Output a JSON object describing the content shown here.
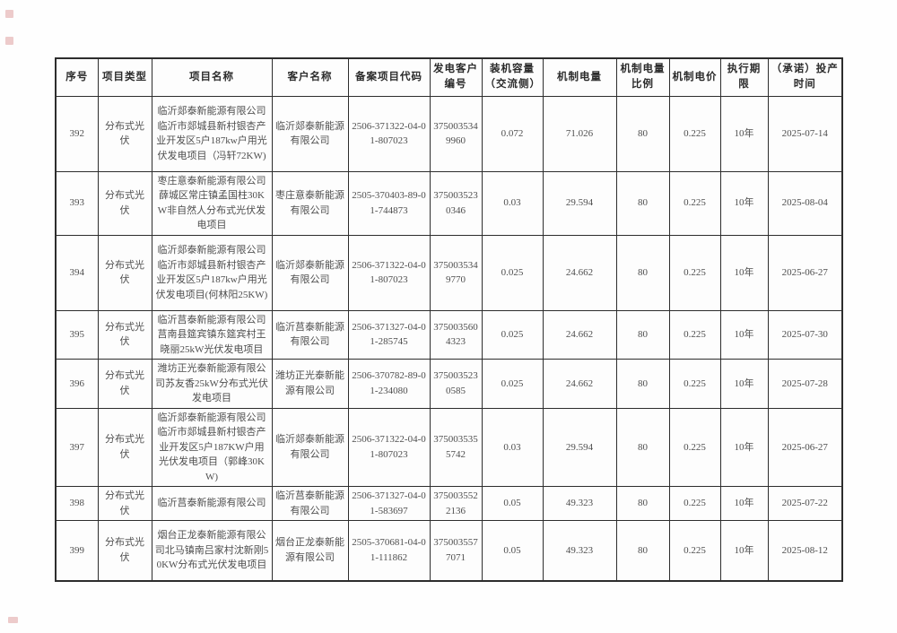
{
  "table": {
    "columns": [
      {
        "key": "index",
        "label": "序号"
      },
      {
        "key": "type",
        "label": "项目类型"
      },
      {
        "key": "name",
        "label": "项目名称"
      },
      {
        "key": "customer",
        "label": "客户名称"
      },
      {
        "key": "code",
        "label": "备案项目代码"
      },
      {
        "key": "gen_no",
        "label": "发电客户编号"
      },
      {
        "key": "capacity",
        "label": "装机容量（交流侧）"
      },
      {
        "key": "energy",
        "label": "机制电量"
      },
      {
        "key": "ratio",
        "label": "机制电量比例"
      },
      {
        "key": "price",
        "label": "机制电价"
      },
      {
        "key": "term",
        "label": "执行期限"
      },
      {
        "key": "date",
        "label": "（承诺）投产时间"
      }
    ],
    "rows": [
      {
        "index": "392",
        "type": "分布式光伏",
        "name": "临沂郯泰新能源有限公司临沂市郯城县新村银杏产业开发区5户187kw户用光伏发电项目（冯轩72KW)",
        "customer": "临沂郯泰新能源有限公司",
        "code": "2506-371322-04-01-807023",
        "gen_no": "3750035349960",
        "capacity": "0.072",
        "energy": "71.026",
        "ratio": "80",
        "price": "0.225",
        "term": "10年",
        "date": "2025-07-14"
      },
      {
        "index": "393",
        "type": "分布式光伏",
        "name": "枣庄意泰新能源有限公司薛城区常庄镇孟国柱30KW非自然人分布式光伏发电项目",
        "customer": "枣庄意泰新能源有限公司",
        "code": "2505-370403-89-01-744873",
        "gen_no": "3750035230346",
        "capacity": "0.03",
        "energy": "29.594",
        "ratio": "80",
        "price": "0.225",
        "term": "10年",
        "date": "2025-08-04"
      },
      {
        "index": "394",
        "type": "分布式光伏",
        "name": "临沂郯泰新能源有限公司临沂市郯城县新村银杏产业开发区5户187kw户用光伏发电项目(何林阳25KW)",
        "customer": "临沂郯泰新能源有限公司",
        "code": "2506-371322-04-01-807023",
        "gen_no": "3750035349770",
        "capacity": "0.025",
        "energy": "24.662",
        "ratio": "80",
        "price": "0.225",
        "term": "10年",
        "date": "2025-06-27"
      },
      {
        "index": "395",
        "type": "分布式光伏",
        "name": "临沂莒泰新能源有限公司莒南县筵宾镇东筵宾村王晓丽25kW光伏发电项目",
        "customer": "临沂莒泰新能源有限公司",
        "code": "2506-371327-04-01-285745",
        "gen_no": "3750035604323",
        "capacity": "0.025",
        "energy": "24.662",
        "ratio": "80",
        "price": "0.225",
        "term": "10年",
        "date": "2025-07-30"
      },
      {
        "index": "396",
        "type": "分布式光伏",
        "name": "潍坊正光泰新能源有限公司苏友香25kW分布式光伏发电项目",
        "customer": "潍坊正光泰新能源有限公司",
        "code": "2506-370782-89-01-234080",
        "gen_no": "3750035230585",
        "capacity": "0.025",
        "energy": "24.662",
        "ratio": "80",
        "price": "0.225",
        "term": "10年",
        "date": "2025-07-28"
      },
      {
        "index": "397",
        "type": "分布式光伏",
        "name": "临沂郯泰新能源有限公司临沂市郯城县新村银杏产业开发区5户187KW户用光伏发电项目（郭峰30KW)",
        "customer": "临沂郯泰新能源有限公司",
        "code": "2506-371322-04-01-807023",
        "gen_no": "3750035355742",
        "capacity": "0.03",
        "energy": "29.594",
        "ratio": "80",
        "price": "0.225",
        "term": "10年",
        "date": "2025-06-27"
      },
      {
        "index": "398",
        "type": "分布式光伏",
        "name": "临沂莒泰新能源有限公司",
        "customer": "临沂莒泰新能源有限公司",
        "code": "2506-371327-04-01-583697",
        "gen_no": "3750035522136",
        "capacity": "0.05",
        "energy": "49.323",
        "ratio": "80",
        "price": "0.225",
        "term": "10年",
        "date": "2025-07-22"
      },
      {
        "index": "399",
        "type": "分布式光伏",
        "name": "烟台正龙泰新能源有限公司北马镇南吕家村沈新刚50KW分布式光伏发电项目",
        "customer": "烟台正龙泰新能源有限公司",
        "code": "2505-370681-04-01-111862",
        "gen_no": "3750035577071",
        "capacity": "0.05",
        "energy": "49.323",
        "ratio": "80",
        "price": "0.225",
        "term": "10年",
        "date": "2025-08-12"
      }
    ]
  },
  "scan_marks": {
    "color": "#cd6e6e"
  }
}
